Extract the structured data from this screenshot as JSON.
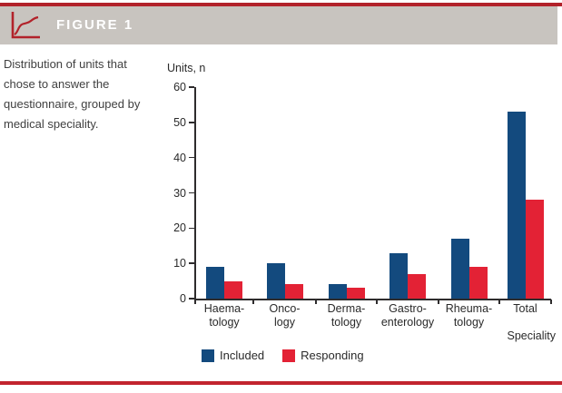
{
  "header": {
    "title": "FIGURE 1",
    "icon": "line-chart-icon"
  },
  "caption": {
    "text": "Distribution of units that chose to answer the questionnaire, grouped by medical speciality."
  },
  "colors": {
    "accent_red": "#b2222a",
    "bottom_rule_red": "#c2242e",
    "header_bg": "#c8c4bf",
    "bar_blue": "#134a7e",
    "bar_red": "#e32235"
  },
  "chart_data": {
    "type": "bar",
    "title": "FIGURE 1",
    "ylabel": "Units, n",
    "xlabel": "Speciality",
    "ylim": [
      0,
      60
    ],
    "yticks": [
      0,
      10,
      20,
      30,
      40,
      50,
      60
    ],
    "grid": false,
    "legend_position": "bottom-left",
    "categories": [
      "Haematology",
      "Oncology",
      "Dermatology",
      "Gastroenterology",
      "Rheumatology",
      "Total"
    ],
    "category_label_lines": [
      [
        "Haema-",
        "tology"
      ],
      [
        "Onco-",
        "logy"
      ],
      [
        "Derma-",
        "tology"
      ],
      [
        "Gastro-",
        "enterology"
      ],
      [
        "Rheuma-",
        "tology"
      ],
      [
        "Total"
      ]
    ],
    "series": [
      {
        "name": "Included",
        "color": "#134a7e",
        "values": [
          9,
          10,
          4,
          13,
          17,
          53
        ]
      },
      {
        "name": "Responding",
        "color": "#e32235",
        "values": [
          5,
          4,
          3,
          7,
          9,
          28
        ]
      }
    ]
  }
}
